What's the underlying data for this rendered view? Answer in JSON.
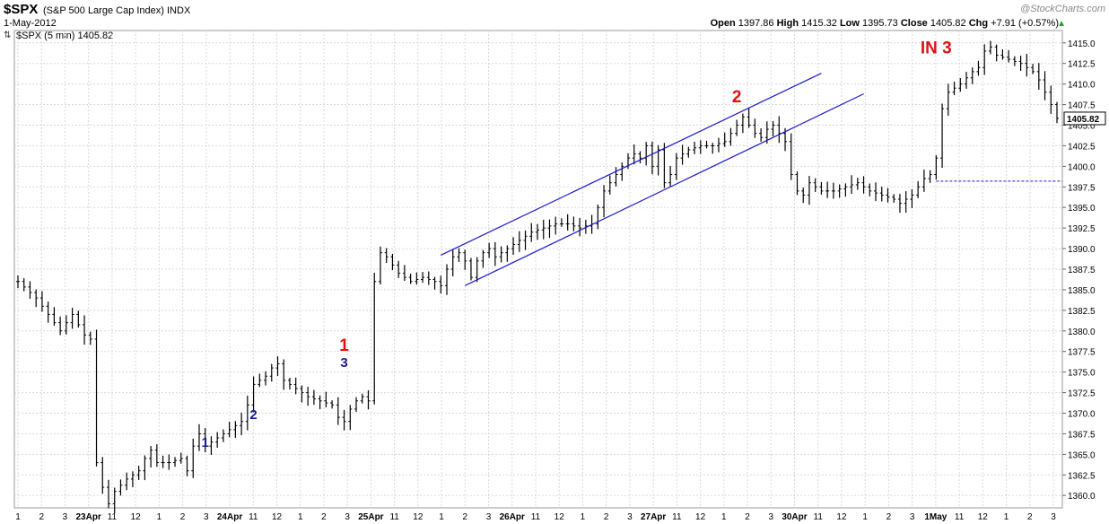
{
  "header": {
    "symbol": "$SPX",
    "description": "(S&P 500 Large Cap Index) INDX",
    "date": "1-May-2012",
    "legend": "$SPX (5 min) 1405.82",
    "credit": "@StockCharts.com",
    "open_label": "Open",
    "open_value": "1397.86",
    "high_label": "High",
    "high_value": "1415.32",
    "low_label": "Low",
    "low_value": "1395.73",
    "close_label": "Close",
    "close_value": "1405.82",
    "chg_label": "Chg",
    "chg_value": "+7.91 (+0.57%)",
    "chg_color": "#2a9a2a"
  },
  "colors": {
    "bars": "#000000",
    "grid": "#d8d8d8",
    "channel": "#1a1acc",
    "wave_red": "#dd1111",
    "wave_blue": "#1a1a99",
    "ref_line": "#1a1acc"
  },
  "chart_data": {
    "type": "ohlc-bar",
    "interval": "5 min",
    "y_axis": {
      "side": "right",
      "range": [
        1358.5,
        1416.5
      ],
      "ticks": [
        "1360.0",
        "1362.5",
        "1365.0",
        "1367.5",
        "1370.0",
        "1372.5",
        "1375.0",
        "1377.5",
        "1380.0",
        "1382.5",
        "1385.0",
        "1387.5",
        "1390.0",
        "1392.5",
        "1395.0",
        "1397.5",
        "1400.0",
        "1402.5",
        "1405.0",
        "1407.5",
        "1410.0",
        "1412.5",
        "1415.0"
      ],
      "last_value_label": "1405.82"
    },
    "x_axis": {
      "tick_labels": [
        "1",
        "2",
        "3",
        "23Apr",
        "11",
        "12",
        "1",
        "2",
        "3",
        "24Apr",
        "11",
        "12",
        "1",
        "2",
        "3",
        "25Apr",
        "11",
        "12",
        "1",
        "2",
        "3",
        "26Apr",
        "11",
        "12",
        "1",
        "2",
        "3",
        "27Apr",
        "11",
        "12",
        "1",
        "2",
        "3",
        "30Apr",
        "11",
        "12",
        "1",
        "2",
        "3",
        "1May",
        "11",
        "12",
        "1",
        "2",
        "3"
      ]
    },
    "price_path": [
      [
        0,
        1386
      ],
      [
        3,
        1384
      ],
      [
        5,
        1382
      ],
      [
        7,
        1380
      ],
      [
        9,
        1382
      ],
      [
        11,
        1379.5
      ],
      [
        12,
        1379
      ],
      [
        13,
        1364
      ],
      [
        14,
        1361
      ],
      [
        15,
        1359
      ],
      [
        16,
        1360.5
      ],
      [
        18,
        1362
      ],
      [
        20,
        1363
      ],
      [
        21,
        1364.5
      ],
      [
        22,
        1365.5
      ],
      [
        23,
        1364
      ],
      [
        25,
        1364
      ],
      [
        27,
        1364.5
      ],
      [
        28,
        1363
      ],
      [
        29,
        1366
      ],
      [
        30,
        1367.5
      ],
      [
        31,
        1366
      ],
      [
        33,
        1367
      ],
      [
        35,
        1368
      ],
      [
        37,
        1369
      ],
      [
        38,
        1371
      ],
      [
        39,
        1373.5
      ],
      [
        40,
        1374
      ],
      [
        41,
        1374.5
      ],
      [
        42,
        1375.5
      ],
      [
        43,
        1376
      ],
      [
        44,
        1374
      ],
      [
        46,
        1373
      ],
      [
        48,
        1372
      ],
      [
        50,
        1371.5
      ],
      [
        52,
        1371
      ],
      [
        53,
        1369.5
      ],
      [
        54,
        1369
      ],
      [
        55,
        1370.5
      ],
      [
        56,
        1371.5
      ],
      [
        57,
        1372
      ],
      [
        58,
        1371.5
      ],
      [
        59,
        1386
      ],
      [
        60,
        1389.5
      ],
      [
        61,
        1389
      ],
      [
        62,
        1388
      ],
      [
        63,
        1387
      ],
      [
        65,
        1386
      ],
      [
        67,
        1386.5
      ],
      [
        69,
        1386
      ],
      [
        70,
        1385.5
      ],
      [
        71,
        1387.5
      ],
      [
        72,
        1389
      ],
      [
        73,
        1389.5
      ],
      [
        74,
        1388.5
      ],
      [
        75,
        1386.5
      ],
      [
        76,
        1388.5
      ],
      [
        77,
        1389.5
      ],
      [
        78,
        1390
      ],
      [
        79,
        1389
      ],
      [
        81,
        1390
      ],
      [
        83,
        1391
      ],
      [
        85,
        1392
      ],
      [
        87,
        1392.5
      ],
      [
        89,
        1393
      ],
      [
        91,
        1393
      ],
      [
        93,
        1392.5
      ],
      [
        95,
        1393
      ],
      [
        96,
        1395
      ],
      [
        97,
        1397
      ],
      [
        99,
        1399
      ],
      [
        100,
        1400
      ],
      [
        101,
        1401
      ],
      [
        102,
        1401.5
      ],
      [
        103,
        1401
      ],
      [
        104,
        1402.5
      ],
      [
        105,
        1400
      ],
      [
        106,
        1402
      ],
      [
        107,
        1398
      ],
      [
        108,
        1399
      ],
      [
        109,
        1401
      ],
      [
        111,
        1402
      ],
      [
        113,
        1402.5
      ],
      [
        115,
        1402.5
      ],
      [
        117,
        1403
      ],
      [
        119,
        1405
      ],
      [
        120,
        1406
      ],
      [
        121,
        1405
      ],
      [
        122,
        1404
      ],
      [
        123,
        1403.5
      ],
      [
        124,
        1404.5
      ],
      [
        125,
        1405
      ],
      [
        126,
        1404
      ],
      [
        127,
        1403
      ],
      [
        128,
        1399
      ],
      [
        129,
        1397
      ],
      [
        130,
        1396.5
      ],
      [
        131,
        1398
      ],
      [
        133,
        1397
      ],
      [
        135,
        1397
      ],
      [
        137,
        1397.5
      ],
      [
        139,
        1398
      ],
      [
        141,
        1397
      ],
      [
        143,
        1396.5
      ],
      [
        145,
        1396
      ],
      [
        146,
        1395.5
      ],
      [
        147,
        1396
      ],
      [
        148,
        1396.5
      ],
      [
        149,
        1397.5
      ],
      [
        150,
        1398.5
      ],
      [
        151,
        1399
      ],
      [
        152,
        1401
      ],
      [
        153,
        1407
      ],
      [
        154,
        1409
      ],
      [
        156,
        1410
      ],
      [
        158,
        1411.5
      ],
      [
        159,
        1412
      ],
      [
        160,
        1414
      ],
      [
        161,
        1414.5
      ],
      [
        162,
        1413.5
      ],
      [
        164,
        1413
      ],
      [
        166,
        1412.5
      ],
      [
        167,
        1412
      ],
      [
        168,
        1411.5
      ],
      [
        169,
        1410.5
      ],
      [
        170,
        1409
      ],
      [
        171,
        1407.5
      ],
      [
        172,
        1405.82
      ]
    ],
    "n_bars": 173,
    "annotations": [
      {
        "text": "1",
        "bar": 31,
        "price": 1365.9,
        "color": "blue",
        "size": "small"
      },
      {
        "text": "2",
        "bar": 39,
        "price": 1369.3,
        "color": "blue",
        "size": "small"
      },
      {
        "text": "1",
        "bar": 54,
        "price": 1377.6,
        "color": "red",
        "size": "large"
      },
      {
        "text": "3",
        "bar": 54,
        "price": 1375.6,
        "color": "blue",
        "size": "small"
      },
      {
        "text": "2",
        "bar": 119,
        "price": 1407.8,
        "color": "red",
        "size": "large"
      },
      {
        "text": "IN 3",
        "bar": 152,
        "price": 1413.7,
        "color": "red",
        "size": "large"
      }
    ],
    "channel_lines": [
      {
        "from": [
          70,
          1389.2
        ],
        "to": [
          133,
          1411.3
        ]
      },
      {
        "from": [
          74,
          1385.5
        ],
        "to": [
          140,
          1408.8
        ]
      }
    ],
    "reference_line": {
      "price": 1398.2,
      "from_bar": 152,
      "to_bar": 173,
      "style": "dashed"
    }
  }
}
